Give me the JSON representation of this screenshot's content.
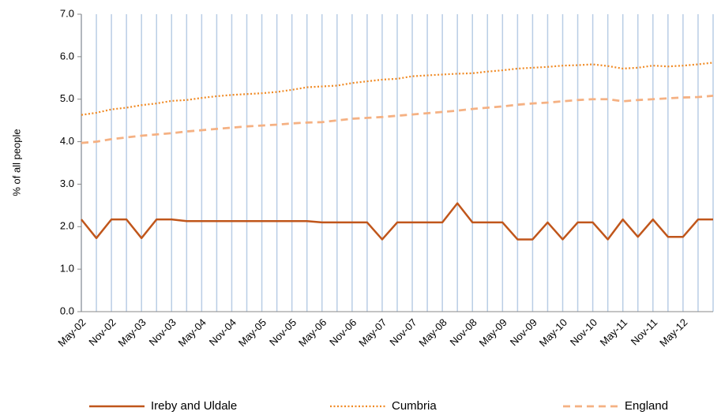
{
  "chart_data": {
    "type": "line",
    "y_label": "% of all people",
    "categories": [
      "May-02",
      null,
      "Nov-02",
      null,
      "May-03",
      null,
      "Nov-03",
      null,
      "May-04",
      null,
      "Nov-04",
      null,
      "May-05",
      null,
      "Nov-05",
      null,
      "May-06",
      null,
      "Nov-06",
      null,
      "May-07",
      null,
      "Nov-07",
      null,
      "May-08",
      null,
      "Nov-08",
      null,
      "May-09",
      null,
      "Nov-09",
      null,
      "May-10",
      null,
      "Nov-10",
      null,
      "May-11",
      null,
      "Nov-11",
      null,
      "May-12",
      null,
      null
    ],
    "series": [
      {
        "name": "Ireby and Uldale",
        "color": "#c0561b",
        "dash": "solid",
        "values": [
          2.17,
          1.73,
          2.17,
          2.17,
          1.73,
          2.17,
          2.17,
          2.13,
          2.13,
          2.13,
          2.13,
          2.13,
          2.13,
          2.13,
          2.13,
          2.13,
          2.1,
          2.1,
          2.1,
          2.1,
          1.7,
          2.1,
          2.1,
          2.1,
          2.1,
          2.55,
          2.1,
          2.1,
          2.1,
          1.7,
          1.7,
          2.1,
          1.7,
          2.1,
          2.1,
          1.7,
          2.17,
          1.76,
          2.17,
          1.76,
          1.76,
          2.17,
          2.17
        ]
      },
      {
        "name": "Cumbria",
        "color": "#f08a24",
        "dash": "dotted",
        "values": [
          4.63,
          4.68,
          4.76,
          4.8,
          4.86,
          4.9,
          4.96,
          4.98,
          5.03,
          5.07,
          5.1,
          5.12,
          5.14,
          5.17,
          5.22,
          5.28,
          5.3,
          5.32,
          5.38,
          5.42,
          5.46,
          5.48,
          5.54,
          5.56,
          5.58,
          5.6,
          5.61,
          5.65,
          5.68,
          5.72,
          5.74,
          5.76,
          5.79,
          5.8,
          5.82,
          5.78,
          5.72,
          5.74,
          5.79,
          5.77,
          5.79,
          5.82,
          5.86
        ]
      },
      {
        "name": "England",
        "color": "#f5b183",
        "dash": "dashed",
        "values": [
          3.97,
          4.0,
          4.06,
          4.1,
          4.14,
          4.17,
          4.2,
          4.24,
          4.27,
          4.3,
          4.33,
          4.36,
          4.38,
          4.4,
          4.43,
          4.45,
          4.46,
          4.5,
          4.54,
          4.56,
          4.58,
          4.61,
          4.64,
          4.67,
          4.7,
          4.73,
          4.77,
          4.8,
          4.83,
          4.87,
          4.9,
          4.92,
          4.95,
          4.98,
          5.0,
          5.0,
          4.95,
          4.98,
          5.0,
          5.02,
          5.04,
          5.05,
          5.08
        ]
      }
    ],
    "ylim": [
      0,
      7
    ],
    "yticks": [
      {
        "value": 0,
        "label": "0.0"
      },
      {
        "value": 1,
        "label": "1.0"
      },
      {
        "value": 2,
        "label": "2.0"
      },
      {
        "value": 3,
        "label": "3.0"
      },
      {
        "value": 4,
        "label": "4.0"
      },
      {
        "value": 5,
        "label": "5.0"
      },
      {
        "value": 6,
        "label": "6.0"
      },
      {
        "value": 7,
        "label": "7.0"
      }
    ],
    "grid": "x",
    "grid_color": "#b9cde5",
    "legend": "bottom"
  }
}
